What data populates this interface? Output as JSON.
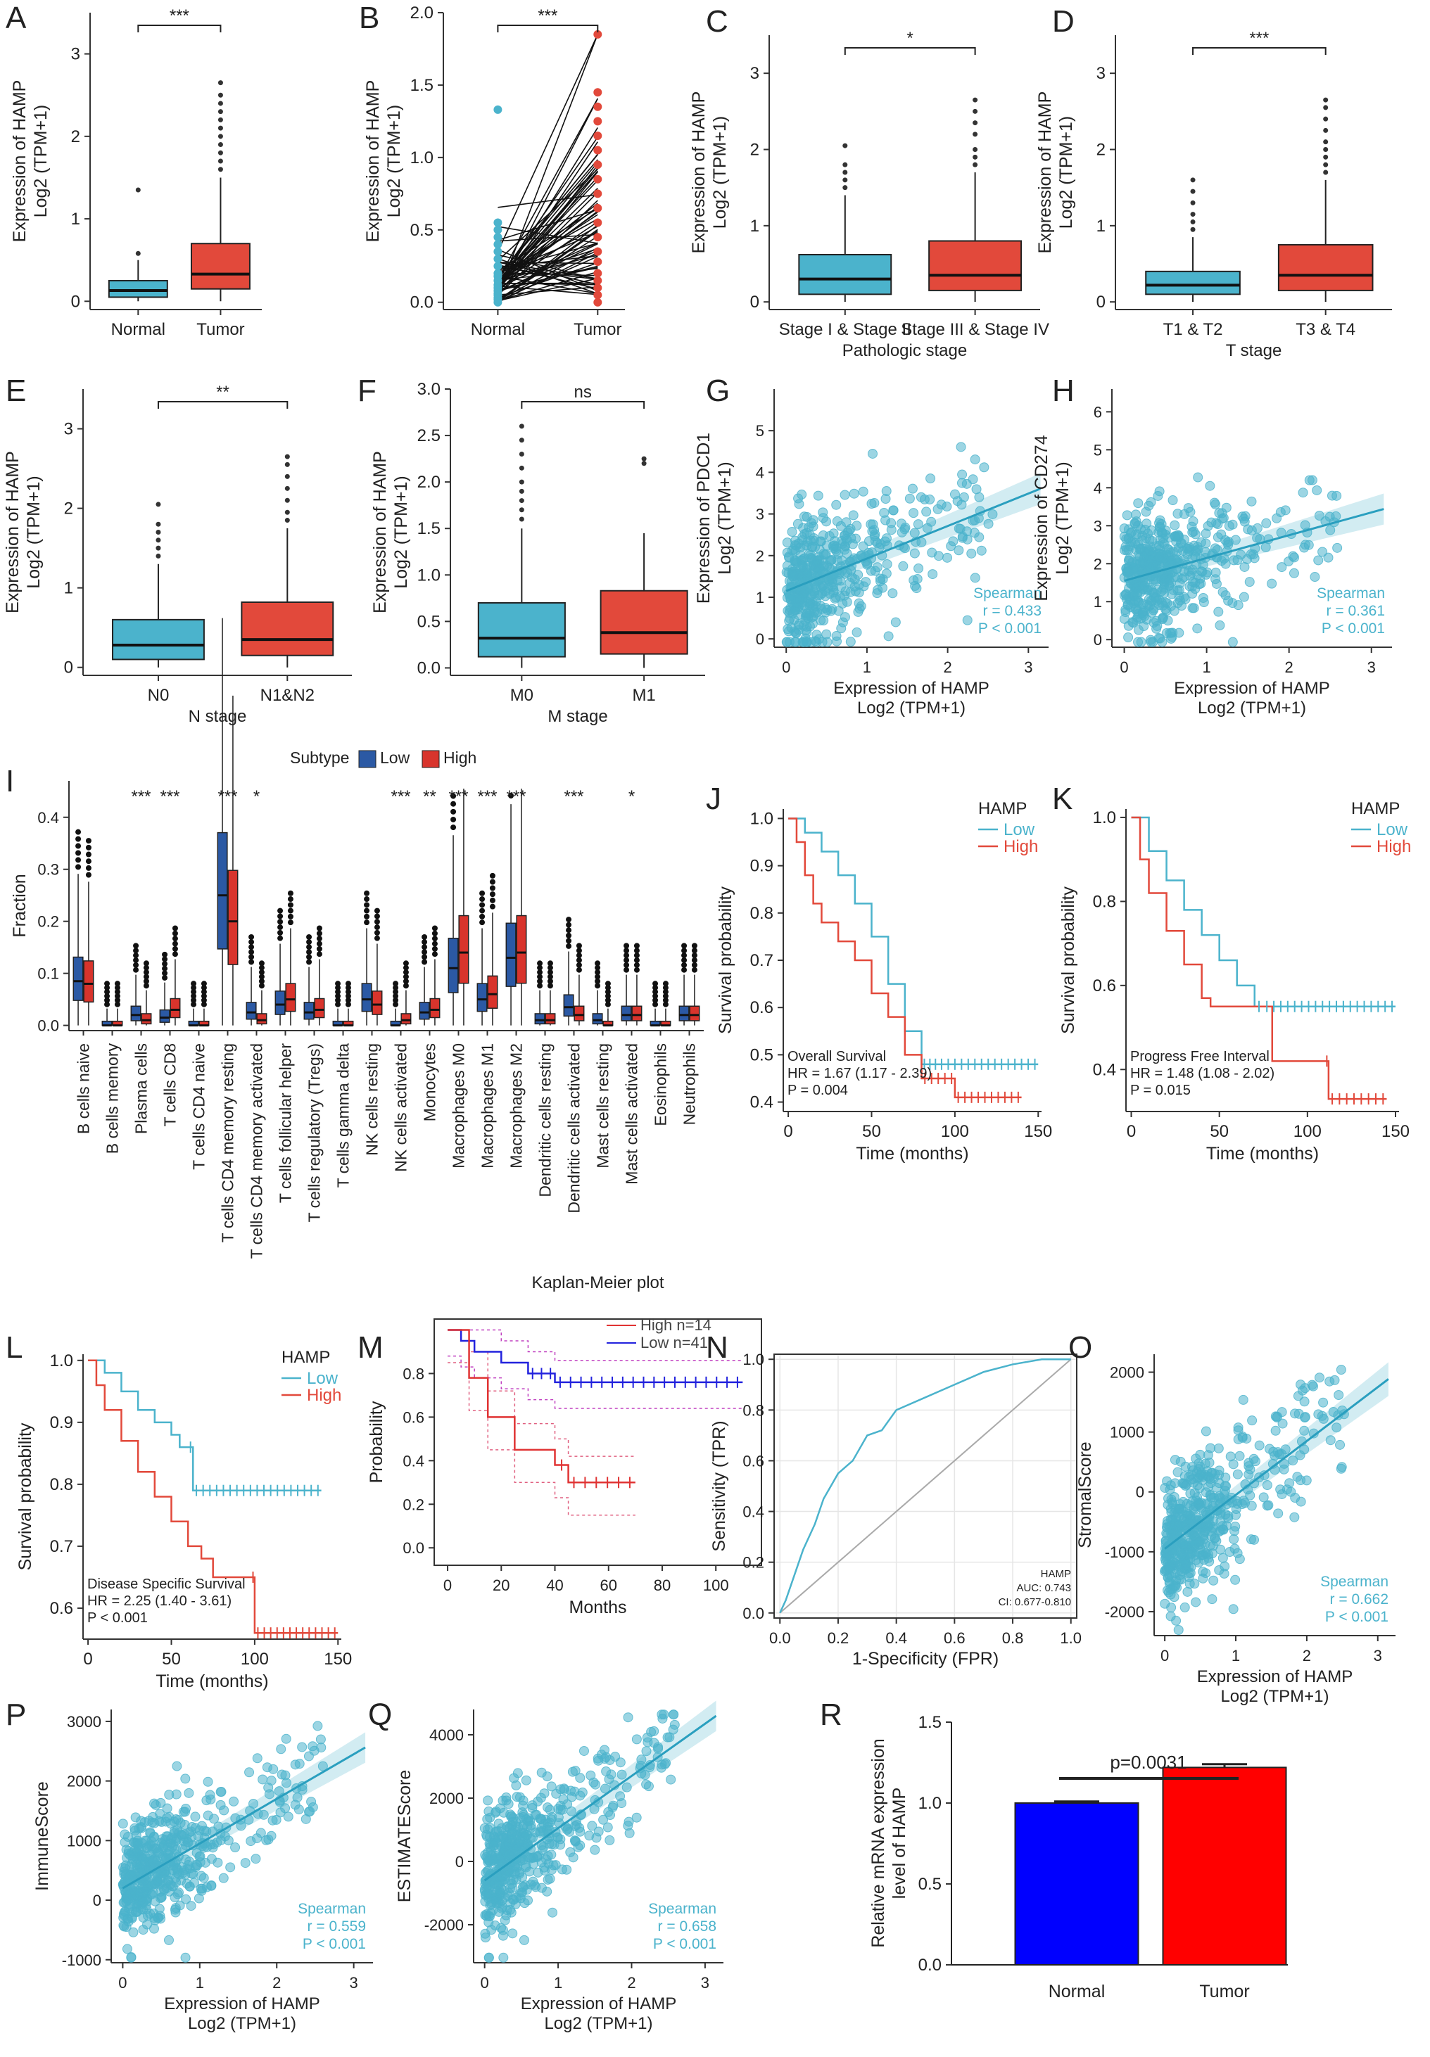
{
  "colors": {
    "blue": "#4bb3cc",
    "red": "#e2493b",
    "darkblue": "#2b59a4",
    "darkred": "#d8342c",
    "barBlue": "#0000ff",
    "barRed": "#ff0000",
    "gray": "#bbbbbb"
  },
  "chart_data": [
    {
      "panel": "A",
      "type": "box",
      "title": "",
      "xlabel": "",
      "ylabel": "Expression of HAMP",
      "ylabel2": "Log2 (TPM+1)",
      "ylim": [
        -0.1,
        3.5
      ],
      "yticks": [
        0,
        1,
        2,
        3
      ],
      "categories": [
        "Normal",
        "Tumor"
      ],
      "colors": [
        "#4bb3cc",
        "#e2493b"
      ],
      "boxes": [
        {
          "q1": 0.05,
          "median": 0.13,
          "q3": 0.25,
          "wlo": 0,
          "whi": 0.5,
          "outliers": [
            0.58,
            1.35
          ]
        },
        {
          "q1": 0.15,
          "median": 0.33,
          "q3": 0.7,
          "wlo": 0,
          "whi": 1.5,
          "outliers": [
            1.6,
            1.7,
            1.8,
            1.9,
            2.0,
            2.1,
            2.2,
            2.3,
            2.4,
            2.5,
            2.65
          ]
        }
      ],
      "sig": "***"
    },
    {
      "panel": "B",
      "type": "paired",
      "ylabel": "Expression of HAMP",
      "ylabel2": "Log2 (TPM+1)",
      "ylim": [
        -0.05,
        2.0
      ],
      "yticks": [
        0.0,
        0.5,
        1.0,
        1.5,
        2.0
      ],
      "categories": [
        "Normal",
        "Tumor"
      ],
      "normal": [
        0.0,
        0.02,
        0.03,
        0.05,
        0.06,
        0.08,
        0.1,
        0.12,
        0.15,
        0.18,
        0.2,
        0.25,
        0.3,
        0.35,
        0.4,
        0.45,
        0.5,
        0.55,
        1.33
      ],
      "tumor": [
        0.0,
        0.05,
        0.1,
        0.15,
        0.2,
        0.28,
        0.35,
        0.45,
        0.55,
        0.65,
        0.75,
        0.85,
        0.95,
        1.05,
        1.15,
        1.25,
        1.35,
        1.45,
        1.85
      ],
      "sig": "***"
    },
    {
      "panel": "C",
      "type": "box",
      "xlabel": "Pathologic stage",
      "ylabel": "Expression of HAMP",
      "ylabel2": "Log2 (TPM+1)",
      "ylim": [
        -0.1,
        3.5
      ],
      "yticks": [
        0,
        1,
        2,
        3
      ],
      "categories": [
        "Stage I & Stage II",
        "Stage III & Stage IV"
      ],
      "colors": [
        "#4bb3cc",
        "#e2493b"
      ],
      "boxes": [
        {
          "q1": 0.1,
          "median": 0.3,
          "q3": 0.62,
          "wlo": 0,
          "whi": 1.4,
          "outliers": [
            1.5,
            1.6,
            1.7,
            1.8,
            2.05
          ]
        },
        {
          "q1": 0.15,
          "median": 0.35,
          "q3": 0.8,
          "wlo": 0,
          "whi": 1.7,
          "outliers": [
            1.8,
            1.9,
            2.0,
            2.2,
            2.35,
            2.5,
            2.65
          ]
        }
      ],
      "sig": "*"
    },
    {
      "panel": "D",
      "type": "box",
      "xlabel": "T stage",
      "ylabel": "Expression of HAMP",
      "ylabel2": "Log2 (TPM+1)",
      "ylim": [
        -0.1,
        3.5
      ],
      "yticks": [
        0,
        1,
        2,
        3
      ],
      "categories": [
        "T1 & T2",
        "T3 & T4"
      ],
      "colors": [
        "#4bb3cc",
        "#e2493b"
      ],
      "boxes": [
        {
          "q1": 0.1,
          "median": 0.22,
          "q3": 0.4,
          "wlo": 0,
          "whi": 0.85,
          "outliers": [
            0.95,
            1.05,
            1.15,
            1.3,
            1.45,
            1.6
          ]
        },
        {
          "q1": 0.15,
          "median": 0.35,
          "q3": 0.75,
          "wlo": 0,
          "whi": 1.6,
          "outliers": [
            1.7,
            1.8,
            1.9,
            2.0,
            2.1,
            2.25,
            2.4,
            2.55,
            2.65
          ]
        }
      ],
      "sig": "***"
    },
    {
      "panel": "E",
      "type": "box",
      "xlabel": "N stage",
      "ylabel": "Expression of HAMP",
      "ylabel2": "Log2 (TPM+1)",
      "ylim": [
        -0.1,
        3.5
      ],
      "yticks": [
        0,
        1,
        2,
        3
      ],
      "categories": [
        "N0",
        "N1&N2"
      ],
      "colors": [
        "#4bb3cc",
        "#e2493b"
      ],
      "boxes": [
        {
          "q1": 0.1,
          "median": 0.28,
          "q3": 0.6,
          "wlo": 0,
          "whi": 1.3,
          "outliers": [
            1.4,
            1.5,
            1.6,
            1.7,
            1.8,
            2.05
          ]
        },
        {
          "q1": 0.15,
          "median": 0.35,
          "q3": 0.82,
          "wlo": 0,
          "whi": 1.75,
          "outliers": [
            1.85,
            1.95,
            2.1,
            2.25,
            2.4,
            2.55,
            2.65
          ]
        }
      ],
      "sig": "**"
    },
    {
      "panel": "F",
      "type": "box",
      "xlabel": "M stage",
      "ylabel": "Expression of HAMP",
      "ylabel2": "Log2 (TPM+1)",
      "ylim": [
        -0.08,
        3.0
      ],
      "yticks": [
        0.0,
        0.5,
        1.0,
        1.5,
        2.0,
        2.5,
        3.0
      ],
      "categories": [
        "M0",
        "M1"
      ],
      "colors": [
        "#4bb3cc",
        "#e2493b"
      ],
      "boxes": [
        {
          "q1": 0.12,
          "median": 0.32,
          "q3": 0.7,
          "wlo": 0,
          "whi": 1.5,
          "outliers": [
            1.6,
            1.7,
            1.8,
            1.9,
            2.0,
            2.15,
            2.3,
            2.45,
            2.6
          ]
        },
        {
          "q1": 0.15,
          "median": 0.38,
          "q3": 0.83,
          "wlo": 0,
          "whi": 1.45,
          "outliers": [
            2.2,
            2.25
          ]
        }
      ],
      "sig": "ns"
    },
    {
      "panel": "G",
      "type": "scatter",
      "xlabel": "Expression of HAMP",
      "xlabel2": "Log2 (TPM+1)",
      "ylabel": "Expression of PDCD1",
      "ylabel2": "Log2 (TPM+1)",
      "xlim": [
        -0.15,
        3.25
      ],
      "ylim": [
        -0.2,
        6
      ],
      "xticks": [
        0,
        1,
        2,
        3
      ],
      "yticks": [
        0,
        1,
        2,
        3,
        4,
        5
      ],
      "fit": {
        "intercept": 1.15,
        "slope": 0.78
      },
      "seed": 7,
      "annotation": [
        "Spearman",
        "r = 0.433",
        "P < 0.001"
      ]
    },
    {
      "panel": "H",
      "type": "scatter",
      "xlabel": "Expression of HAMP",
      "xlabel2": "Log2 (TPM+1)",
      "ylabel": "Expression of CD274",
      "ylabel2": "Log2 (TPM+1)",
      "xlim": [
        -0.15,
        3.25
      ],
      "ylim": [
        -0.2,
        6.6
      ],
      "xticks": [
        0,
        1,
        2,
        3
      ],
      "yticks": [
        0,
        1,
        2,
        3,
        4,
        5,
        6
      ],
      "fit": {
        "intercept": 1.55,
        "slope": 0.6
      },
      "seed": 11,
      "annotation": [
        "Spearman",
        "r = 0.361",
        "P < 0.001"
      ]
    },
    {
      "panel": "I",
      "type": "grouped-box",
      "ylabel": "Fraction",
      "legend_title": "Subtype",
      "legend": [
        "Low",
        "High"
      ],
      "ylim": [
        -0.01,
        0.47
      ],
      "yticks": [
        0.0,
        0.1,
        0.2,
        0.3,
        0.4
      ],
      "categories": [
        "B cells naive",
        "B cells memory",
        "Plasma cells",
        "T cells CD8",
        "T cells CD4 naive",
        "T cells CD4 memory resting",
        "T cells CD4 memory activated",
        "T cells follicular helper",
        "T cells regulatory (Tregs)",
        "T cells gamma delta",
        "NK cells resting",
        "NK cells activated",
        "Monocytes",
        "Macrophages M0",
        "Macrophages M1",
        "Macrophages M2",
        "Dendritic cells resting",
        "Dendritic cells activated",
        "Mast cells resting",
        "Mast cells activated",
        "Eosinophils",
        "Neutrophils"
      ],
      "sig": [
        "",
        "",
        "***",
        "***",
        "",
        "***",
        "*",
        "",
        "",
        "",
        "",
        "***",
        "**",
        "***",
        "***",
        "***",
        "",
        "***",
        "",
        "*",
        "",
        ""
      ],
      "low_medians": [
        0.085,
        0.0,
        0.02,
        0.015,
        0.0,
        0.25,
        0.025,
        0.04,
        0.025,
        0.0,
        0.05,
        0.0,
        0.025,
        0.11,
        0.05,
        0.13,
        0.01,
        0.035,
        0.01,
        0.02,
        0.0,
        0.02
      ],
      "high_medians": [
        0.08,
        0.0,
        0.01,
        0.03,
        0.0,
        0.2,
        0.01,
        0.05,
        0.03,
        0.0,
        0.04,
        0.01,
        0.03,
        0.14,
        0.06,
        0.14,
        0.01,
        0.02,
        0.0,
        0.02,
        0.0,
        0.02
      ]
    },
    {
      "panel": "J",
      "type": "km",
      "xlabel": "Time (months)",
      "ylabel": "Survival probability",
      "legend_title": "HAMP",
      "legend": [
        "Low",
        "High"
      ],
      "xlim": [
        -3,
        152
      ],
      "ylim": [
        0.38,
        1.02
      ],
      "xticks": [
        0,
        50,
        100,
        150
      ],
      "yticks": [
        0.4,
        0.5,
        0.6,
        0.7,
        0.8,
        0.9,
        1.0
      ],
      "low": [
        [
          0,
          1.0
        ],
        [
          10,
          0.97
        ],
        [
          20,
          0.93
        ],
        [
          30,
          0.88
        ],
        [
          40,
          0.82
        ],
        [
          50,
          0.75
        ],
        [
          60,
          0.65
        ],
        [
          70,
          0.55
        ],
        [
          80,
          0.48
        ],
        [
          90,
          0.48
        ],
        [
          150,
          0.48
        ]
      ],
      "high": [
        [
          0,
          1.0
        ],
        [
          5,
          0.95
        ],
        [
          10,
          0.88
        ],
        [
          15,
          0.82
        ],
        [
          20,
          0.78
        ],
        [
          30,
          0.74
        ],
        [
          40,
          0.7
        ],
        [
          50,
          0.63
        ],
        [
          60,
          0.58
        ],
        [
          70,
          0.5
        ],
        [
          80,
          0.45
        ],
        [
          100,
          0.41
        ],
        [
          140,
          0.41
        ]
      ],
      "annotation": [
        "Overall Survival",
        "HR = 1.67 (1.17 - 2.39)",
        "P = 0.004"
      ]
    },
    {
      "panel": "K",
      "type": "km",
      "xlabel": "Time (months)",
      "ylabel": "Survival probability",
      "legend_title": "HAMP",
      "legend": [
        "Low",
        "High"
      ],
      "xlim": [
        -3,
        152
      ],
      "ylim": [
        0.3,
        1.02
      ],
      "xticks": [
        0,
        50,
        100,
        150
      ],
      "yticks": [
        0.4,
        0.6,
        0.8,
        1.0
      ],
      "low": [
        [
          0,
          1.0
        ],
        [
          10,
          0.92
        ],
        [
          20,
          0.85
        ],
        [
          30,
          0.78
        ],
        [
          40,
          0.72
        ],
        [
          50,
          0.66
        ],
        [
          60,
          0.6
        ],
        [
          70,
          0.55
        ],
        [
          75,
          0.55
        ],
        [
          150,
          0.55
        ]
      ],
      "high": [
        [
          0,
          1.0
        ],
        [
          5,
          0.9
        ],
        [
          10,
          0.82
        ],
        [
          20,
          0.73
        ],
        [
          30,
          0.65
        ],
        [
          40,
          0.57
        ],
        [
          45,
          0.55
        ],
        [
          75,
          0.55
        ],
        [
          80,
          0.42
        ],
        [
          110,
          0.42
        ],
        [
          112,
          0.33
        ],
        [
          145,
          0.33
        ]
      ],
      "annotation": [
        "Progress Free Interval",
        "HR = 1.48 (1.08 - 2.02)",
        "P = 0.015"
      ]
    },
    {
      "panel": "L",
      "type": "km",
      "xlabel": "Time (months)",
      "ylabel": "Survival probability",
      "legend_title": "HAMP",
      "legend": [
        "Low",
        "High"
      ],
      "xlim": [
        -3,
        152
      ],
      "ylim": [
        0.55,
        1.01
      ],
      "xticks": [
        0,
        50,
        100,
        150
      ],
      "yticks": [
        0.6,
        0.7,
        0.8,
        0.9,
        1.0
      ],
      "low": [
        [
          0,
          1.0
        ],
        [
          10,
          0.98
        ],
        [
          20,
          0.95
        ],
        [
          30,
          0.92
        ],
        [
          40,
          0.9
        ],
        [
          50,
          0.88
        ],
        [
          55,
          0.86
        ],
        [
          60,
          0.86
        ],
        [
          63,
          0.79
        ],
        [
          140,
          0.79
        ]
      ],
      "high": [
        [
          0,
          1.0
        ],
        [
          5,
          0.96
        ],
        [
          10,
          0.92
        ],
        [
          20,
          0.87
        ],
        [
          30,
          0.82
        ],
        [
          40,
          0.78
        ],
        [
          50,
          0.74
        ],
        [
          60,
          0.7
        ],
        [
          68,
          0.68
        ],
        [
          75,
          0.65
        ],
        [
          98,
          0.65
        ],
        [
          100,
          0.56
        ],
        [
          150,
          0.56
        ]
      ],
      "annotation": [
        "Disease Specific Survival",
        "HR = 2.25 (1.40 - 3.61)",
        "P < 0.001"
      ]
    },
    {
      "panel": "M",
      "type": "km",
      "title": "Kaplan-Meier plot",
      "xlabel": "Months",
      "ylabel": "Probability",
      "legend": [
        "High n=14",
        "Low n=41"
      ],
      "xlim": [
        -5,
        117
      ],
      "ylim": [
        -0.08,
        1.05
      ],
      "xticks": [
        0,
        20,
        40,
        60,
        80,
        100
      ],
      "yticks": [
        0.0,
        0.2,
        0.4,
        0.6,
        0.8
      ],
      "low": [
        [
          0,
          1.0
        ],
        [
          5,
          0.95
        ],
        [
          10,
          0.9
        ],
        [
          20,
          0.85
        ],
        [
          30,
          0.8
        ],
        [
          40,
          0.76
        ],
        [
          110,
          0.76
        ]
      ],
      "high": [
        [
          0,
          1.0
        ],
        [
          8,
          0.78
        ],
        [
          15,
          0.6
        ],
        [
          25,
          0.45
        ],
        [
          40,
          0.38
        ],
        [
          45,
          0.3
        ],
        [
          70,
          0.3
        ]
      ]
    },
    {
      "panel": "N",
      "type": "roc",
      "xlabel": "1-Specificity (FPR)",
      "ylabel": "Sensitivity (TPR)",
      "xlim": [
        -0.02,
        1.02
      ],
      "ylim": [
        -0.02,
        1.02
      ],
      "xticks": [
        0.0,
        0.2,
        0.4,
        0.6,
        0.8,
        1.0
      ],
      "yticks": [
        0.0,
        0.2,
        0.4,
        0.6,
        0.8,
        1.0
      ],
      "points": [
        [
          0,
          0
        ],
        [
          0.02,
          0.05
        ],
        [
          0.05,
          0.15
        ],
        [
          0.08,
          0.25
        ],
        [
          0.12,
          0.35
        ],
        [
          0.15,
          0.45
        ],
        [
          0.2,
          0.55
        ],
        [
          0.25,
          0.6
        ],
        [
          0.3,
          0.7
        ],
        [
          0.35,
          0.72
        ],
        [
          0.4,
          0.8
        ],
        [
          0.5,
          0.85
        ],
        [
          0.6,
          0.9
        ],
        [
          0.7,
          0.95
        ],
        [
          0.8,
          0.98
        ],
        [
          0.9,
          1.0
        ],
        [
          1.0,
          1.0
        ]
      ],
      "annotation": [
        "HAMP",
        "AUC: 0.743",
        "CI: 0.677-0.810"
      ]
    },
    {
      "panel": "O",
      "type": "scatter",
      "xlabel": "Expression of HAMP",
      "xlabel2": "Log2 (TPM+1)",
      "ylabel": "StromalScore",
      "xlim": [
        -0.15,
        3.25
      ],
      "ylim": [
        -2400,
        2300
      ],
      "xticks": [
        0,
        1,
        2,
        3
      ],
      "yticks": [
        -2000,
        -1000,
        0,
        1000,
        2000
      ],
      "fit": {
        "intercept": -950,
        "slope": 900
      },
      "seed": 17,
      "annotation": [
        "Spearman",
        "r = 0.662",
        "P < 0.001"
      ]
    },
    {
      "panel": "P",
      "type": "scatter",
      "xlabel": "Expression of HAMP",
      "xlabel2": "Log2 (TPM+1)",
      "ylabel": "ImmuneScore",
      "xlim": [
        -0.15,
        3.25
      ],
      "ylim": [
        -1050,
        3200
      ],
      "xticks": [
        0,
        1,
        2,
        3
      ],
      "yticks": [
        -1000,
        0,
        1000,
        2000,
        3000
      ],
      "fit": {
        "intercept": 200,
        "slope": 750
      },
      "seed": 23,
      "annotation": [
        "Spearman",
        "r = 0.559",
        "P < 0.001"
      ]
    },
    {
      "panel": "Q",
      "type": "scatter",
      "xlabel": "Expression of HAMP",
      "xlabel2": "Log2 (TPM+1)",
      "ylabel": "ESTIMATEScore",
      "xlim": [
        -0.15,
        3.25
      ],
      "ylim": [
        -3200,
        4800
      ],
      "xticks": [
        0,
        1,
        2,
        3
      ],
      "yticks": [
        -2000,
        0,
        2000,
        4000
      ],
      "fit": {
        "intercept": -600,
        "slope": 1650
      },
      "seed": 29,
      "annotation": [
        "Spearman",
        "r = 0.658",
        "P < 0.001"
      ]
    },
    {
      "panel": "R",
      "type": "bar",
      "ylabel": "Relative mRNA expression",
      "ylabel2": "level of HAMP",
      "ylim": [
        0,
        1.5
      ],
      "yticks": [
        0.0,
        0.5,
        1.0,
        1.5
      ],
      "categories": [
        "Normal",
        "Tumor"
      ],
      "values": [
        1.0,
        1.22
      ],
      "errors": [
        0.01,
        0.02
      ],
      "bar_colors": [
        "#0000ff",
        "#ff0000"
      ],
      "annotation": "p=0.0031"
    }
  ]
}
